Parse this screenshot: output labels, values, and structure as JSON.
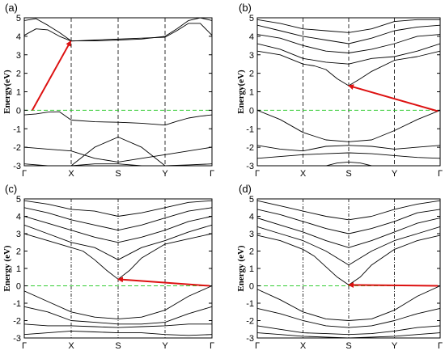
{
  "chart_data": [
    {
      "type": "line",
      "panel_label": "(a)",
      "ylabel": "Energy(eV)",
      "ylim": [
        -3,
        5
      ],
      "yticks": [
        "-3",
        "-2",
        "-1",
        "0",
        "1",
        "2",
        "3",
        "4",
        "5"
      ],
      "xticks": [
        "Γ",
        "X",
        "S",
        "Y",
        "Γ"
      ],
      "fermi_level": 0,
      "gap_arrow": {
        "from": [
          0.17,
          0.0
        ],
        "to": [
          0.99,
          3.74
        ]
      },
      "bands": [
        {
          "x": [
            0,
            0.25,
            0.5,
            0.75,
            1,
            1.5,
            2,
            2.5,
            3,
            3.25,
            3.5,
            3.75,
            4
          ],
          "y": [
            -0.25,
            -0.2,
            -0.1,
            -0.08,
            -0.53,
            -0.62,
            -0.65,
            -0.7,
            -0.8,
            -0.6,
            -0.42,
            -0.32,
            -0.25
          ]
        },
        {
          "x": [
            0,
            0.5,
            1,
            1.5,
            2,
            2.5,
            3,
            3.5,
            4
          ],
          "y": [
            -2.0,
            -2.1,
            -2.2,
            -2.6,
            -2.8,
            -2.6,
            -2.4,
            -2.2,
            -2.0
          ]
        },
        {
          "x": [
            0,
            0.5,
            1,
            1.5,
            2,
            2.5,
            3,
            3.5,
            4
          ],
          "y": [
            -2.9,
            -3.0,
            -3.0,
            -2.9,
            -2.9,
            -3.0,
            -3.0,
            -2.95,
            -2.9
          ]
        },
        {
          "x": [
            1,
            1.5,
            2,
            2.5,
            3
          ],
          "y": [
            -3.0,
            -2.0,
            -1.45,
            -2.0,
            -3.0
          ]
        },
        {
          "x": [
            0,
            0.25,
            0.5,
            0.75,
            1,
            1.5,
            2,
            2.5,
            3,
            3.25,
            3.5,
            3.75,
            4
          ],
          "y": [
            4.05,
            4.4,
            4.35,
            4.0,
            3.74,
            3.8,
            3.85,
            3.9,
            3.95,
            4.3,
            4.7,
            4.7,
            4.05
          ]
        },
        {
          "x": [
            0,
            0.25,
            0.5,
            0.75,
            1,
            1.5,
            2,
            2.5,
            3,
            3.25,
            3.5,
            3.75,
            4
          ],
          "y": [
            4.85,
            4.95,
            4.6,
            4.2,
            3.75,
            3.75,
            3.8,
            3.85,
            4.0,
            4.4,
            4.85,
            5.0,
            4.85
          ]
        }
      ]
    },
    {
      "type": "line",
      "panel_label": "(b)",
      "ylabel": "Energy(eV)",
      "ylim": [
        -3,
        5
      ],
      "yticks": [
        "-3",
        "-2",
        "-1",
        "0",
        "1",
        "2",
        "3",
        "4",
        "5"
      ],
      "xticks": [
        "Γ",
        "X",
        "S",
        "Y",
        "Γ"
      ],
      "fermi_level": 0,
      "gap_arrow": {
        "from": [
          3.95,
          -0.05
        ],
        "to": [
          2.0,
          1.33
        ]
      },
      "bands": [
        {
          "x": [
            0,
            0.5,
            1,
            1.5,
            2,
            2.5,
            3,
            3.5,
            4
          ],
          "y": [
            0.0,
            -0.5,
            -1.2,
            -1.6,
            -1.7,
            -1.6,
            -1.1,
            -0.5,
            0.0
          ]
        },
        {
          "x": [
            0,
            0.5,
            1,
            1.5,
            2,
            2.5,
            3,
            3.5,
            4
          ],
          "y": [
            -1.9,
            -2.1,
            -2.2,
            -1.95,
            -1.9,
            -1.95,
            -2.1,
            -2.0,
            -1.9
          ]
        },
        {
          "x": [
            0,
            0.5,
            1,
            1.5,
            2,
            2.5,
            3,
            3.5,
            4
          ],
          "y": [
            -2.6,
            -2.5,
            -2.4,
            -2.35,
            -2.3,
            -2.35,
            -2.45,
            -2.55,
            -2.6
          ]
        },
        {
          "x": [
            1.5,
            1.75,
            2,
            2.25,
            2.5
          ],
          "y": [
            -3.0,
            -2.85,
            -2.8,
            -2.85,
            -3.0
          ]
        },
        {
          "x": [
            0,
            0.5,
            1,
            1.25,
            1.5,
            1.75,
            2,
            2.25,
            2.5,
            3,
            3.5,
            4
          ],
          "y": [
            3.2,
            3.0,
            2.5,
            2.4,
            2.2,
            1.7,
            1.33,
            1.7,
            2.1,
            2.7,
            2.9,
            3.2
          ]
        },
        {
          "x": [
            0,
            0.5,
            1,
            1.5,
            2,
            2.5,
            3,
            3.5,
            4
          ],
          "y": [
            3.6,
            3.3,
            2.8,
            2.6,
            2.5,
            2.8,
            2.9,
            3.2,
            3.6
          ]
        },
        {
          "x": [
            0,
            0.5,
            1,
            1.5,
            2,
            2.5,
            3,
            3.5,
            4
          ],
          "y": [
            4.1,
            3.9,
            3.5,
            3.2,
            3.1,
            3.3,
            3.6,
            4.0,
            4.1
          ]
        },
        {
          "x": [
            0,
            0.5,
            1,
            1.5,
            2,
            2.5,
            3,
            3.5,
            4
          ],
          "y": [
            4.6,
            4.3,
            4.0,
            3.8,
            3.6,
            3.9,
            4.3,
            4.5,
            4.6
          ]
        },
        {
          "x": [
            0,
            0.5,
            1,
            1.5,
            2,
            2.5,
            3,
            3.5,
            4
          ],
          "y": [
            4.9,
            4.7,
            4.4,
            4.3,
            4.2,
            4.4,
            4.8,
            4.9,
            4.9
          ]
        }
      ]
    },
    {
      "type": "line",
      "panel_label": "(c)",
      "ylabel": "Energy (eV)",
      "ylim": [
        -3,
        5
      ],
      "yticks": [
        "-3",
        "-2",
        "-1",
        "0",
        "1",
        "2",
        "3",
        "4",
        "5"
      ],
      "xticks": [
        "Γ",
        "X",
        "S",
        "Y",
        "Γ"
      ],
      "fermi_level": 0,
      "gap_arrow": {
        "from": [
          3.95,
          0.0
        ],
        "to": [
          2.0,
          0.38
        ]
      },
      "bands": [
        {
          "x": [
            0,
            0.5,
            1,
            1.5,
            2,
            2.5,
            3,
            3.5,
            4
          ],
          "y": [
            -0.3,
            -0.9,
            -1.5,
            -1.8,
            -1.9,
            -1.8,
            -1.4,
            -0.6,
            0.0
          ]
        },
        {
          "x": [
            0,
            0.5,
            1,
            1.5,
            2,
            2.5,
            3,
            3.5,
            4
          ],
          "y": [
            -1.2,
            -1.5,
            -2.0,
            -2.1,
            -2.2,
            -2.2,
            -2.1,
            -1.6,
            -1.2
          ]
        },
        {
          "x": [
            0,
            0.5,
            1,
            1.5,
            2,
            2.5,
            3,
            3.5,
            4
          ],
          "y": [
            -2.2,
            -2.3,
            -2.3,
            -2.35,
            -2.4,
            -2.35,
            -2.3,
            -2.2,
            -2.2
          ]
        },
        {
          "x": [
            0,
            0.5,
            1,
            1.5,
            2,
            2.5,
            3,
            3.5,
            4
          ],
          "y": [
            -2.8,
            -2.7,
            -2.6,
            -2.65,
            -2.7,
            -2.7,
            -2.8,
            -2.85,
            -2.8
          ]
        },
        {
          "x": [
            0,
            0.5,
            1,
            1.25,
            1.5,
            1.75,
            2,
            2.25,
            2.5,
            3,
            3.5,
            4
          ],
          "y": [
            3.0,
            2.6,
            2.2,
            2.0,
            1.5,
            0.9,
            0.38,
            0.9,
            1.6,
            2.4,
            2.7,
            3.0
          ]
        },
        {
          "x": [
            0,
            0.5,
            1,
            1.5,
            2,
            2.5,
            3,
            3.5,
            4
          ],
          "y": [
            3.5,
            3.0,
            2.5,
            2.2,
            1.5,
            2.2,
            2.6,
            3.1,
            3.5
          ]
        },
        {
          "x": [
            0,
            0.5,
            1,
            1.5,
            2,
            2.5,
            3,
            3.5,
            4
          ],
          "y": [
            4.0,
            3.6,
            3.2,
            2.8,
            2.5,
            2.8,
            3.2,
            3.7,
            4.0
          ]
        },
        {
          "x": [
            0,
            0.5,
            1,
            1.5,
            2,
            2.5,
            3,
            3.5,
            4
          ],
          "y": [
            4.5,
            4.2,
            3.8,
            3.5,
            3.2,
            3.5,
            3.9,
            4.3,
            4.5
          ]
        },
        {
          "x": [
            0,
            0.5,
            1,
            1.5,
            2,
            2.5,
            3,
            3.5,
            4
          ],
          "y": [
            4.9,
            4.7,
            4.4,
            4.3,
            4.0,
            4.2,
            4.5,
            4.8,
            4.9
          ]
        }
      ]
    },
    {
      "type": "line",
      "panel_label": "(d)",
      "ylabel": "Energy (eV)",
      "ylim": [
        -3,
        5
      ],
      "yticks": [
        "-3",
        "-2",
        "-1",
        "0",
        "1",
        "2",
        "3",
        "4",
        "5"
      ],
      "xticks": [
        "Γ",
        "X",
        "S",
        "Y",
        "Γ"
      ],
      "fermi_level": 0,
      "gap_arrow": {
        "from": [
          3.95,
          0.0
        ],
        "to": [
          2.0,
          0.05
        ]
      },
      "bands": [
        {
          "x": [
            0,
            0.5,
            1,
            1.5,
            2,
            2.5,
            3,
            3.5,
            4
          ],
          "y": [
            -0.2,
            -0.8,
            -1.5,
            -1.9,
            -2.0,
            -1.9,
            -1.4,
            -0.6,
            0.0
          ]
        },
        {
          "x": [
            0,
            0.5,
            1,
            1.5,
            2,
            2.5,
            3,
            3.5,
            4
          ],
          "y": [
            -1.3,
            -1.6,
            -2.0,
            -2.3,
            -2.4,
            -2.3,
            -2.0,
            -1.6,
            -1.3
          ]
        },
        {
          "x": [
            0,
            0.5,
            1,
            1.5,
            2,
            2.5,
            3,
            3.5,
            4
          ],
          "y": [
            -2.3,
            -2.5,
            -2.7,
            -2.75,
            -2.8,
            -2.75,
            -2.6,
            -2.4,
            -2.3
          ]
        },
        {
          "x": [
            0,
            0.5,
            1,
            1.5,
            2,
            2.5,
            3,
            3.5,
            4
          ],
          "y": [
            -2.7,
            -2.8,
            -2.9,
            -2.95,
            -3.0,
            -2.95,
            -2.9,
            -2.8,
            -2.7
          ]
        },
        {
          "x": [
            0,
            0.5,
            1,
            1.25,
            1.5,
            1.75,
            2,
            2.25,
            2.5,
            3,
            3.5,
            4
          ],
          "y": [
            2.9,
            2.6,
            2.1,
            1.7,
            1.1,
            0.5,
            0.05,
            0.5,
            1.2,
            2.1,
            2.6,
            2.9
          ]
        },
        {
          "x": [
            0,
            0.5,
            1,
            1.5,
            2,
            2.5,
            3,
            3.5,
            4
          ],
          "y": [
            3.4,
            3.0,
            2.6,
            2.0,
            1.2,
            2.0,
            2.6,
            3.0,
            3.4
          ]
        },
        {
          "x": [
            0,
            0.5,
            1,
            1.5,
            2,
            2.5,
            3,
            3.5,
            4
          ],
          "y": [
            3.9,
            3.5,
            3.1,
            2.6,
            2.2,
            2.6,
            3.1,
            3.6,
            3.9
          ]
        },
        {
          "x": [
            0,
            0.5,
            1,
            1.5,
            2,
            2.5,
            3,
            3.5,
            4
          ],
          "y": [
            4.4,
            4.1,
            3.7,
            3.3,
            3.0,
            3.3,
            3.7,
            4.2,
            4.4
          ]
        },
        {
          "x": [
            0,
            0.5,
            1,
            1.5,
            2,
            2.5,
            3,
            3.5,
            4
          ],
          "y": [
            4.9,
            4.6,
            4.3,
            4.0,
            3.8,
            4.0,
            4.4,
            4.7,
            4.9
          ]
        }
      ]
    }
  ],
  "style": {
    "band_color": "#000000",
    "fermi_color": "#33cc33",
    "arrow_color": "#dd1111",
    "sym_line_color": "#000000"
  }
}
